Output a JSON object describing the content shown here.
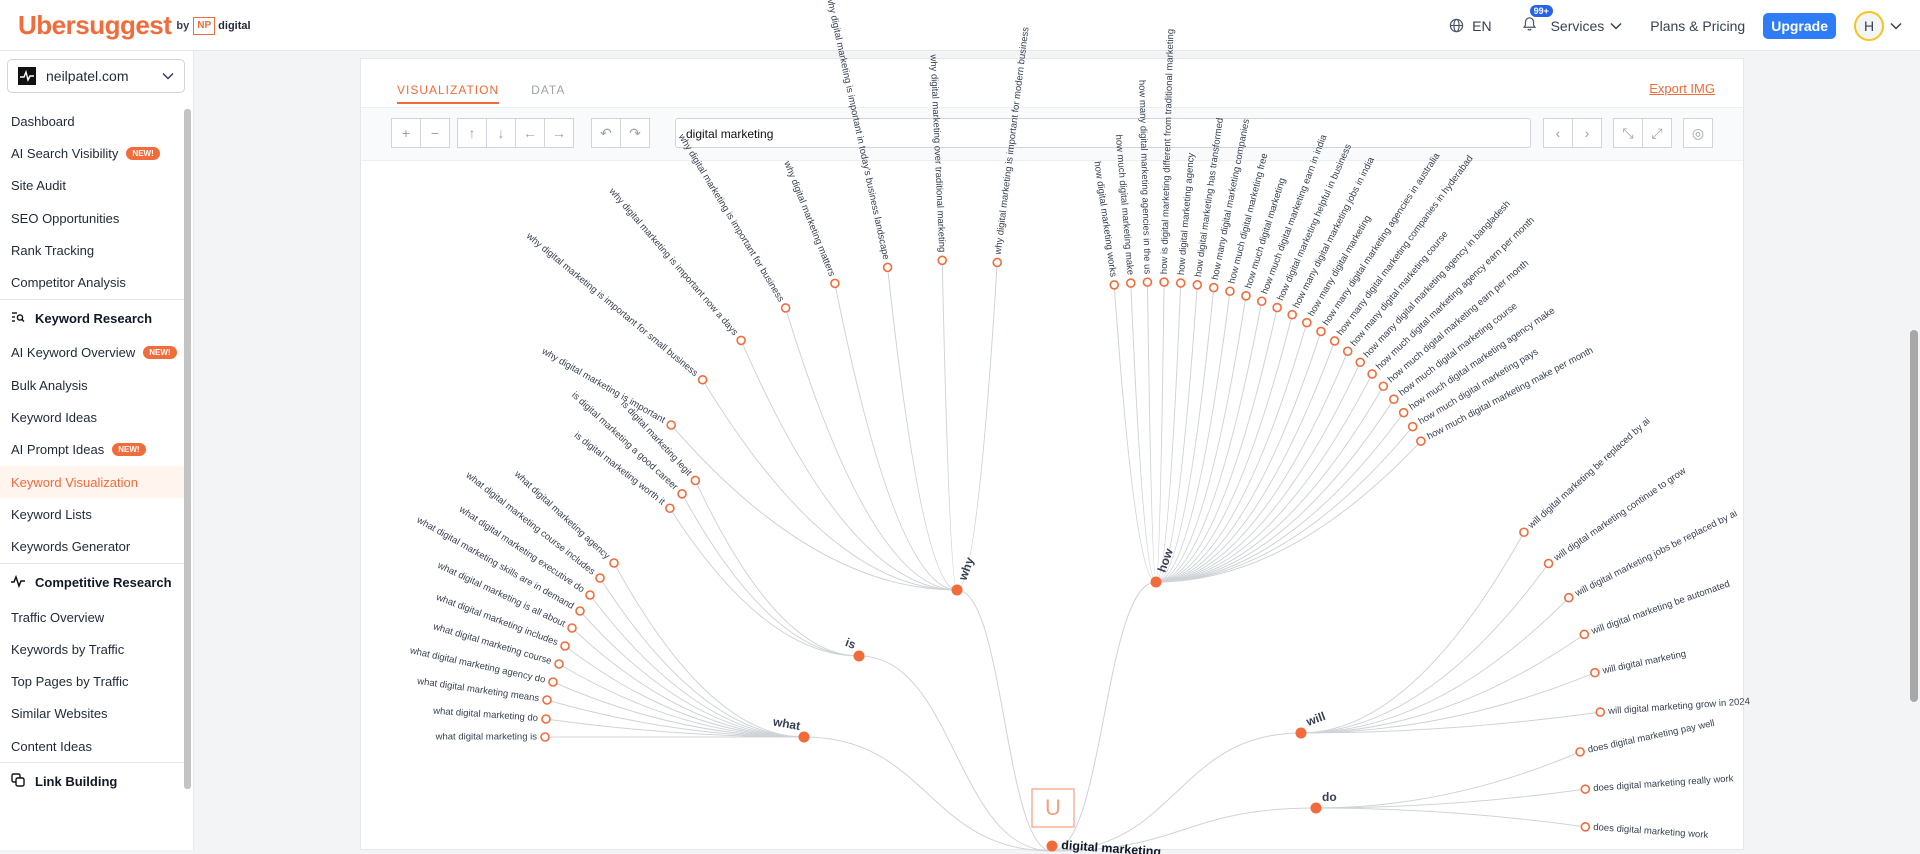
{
  "app": {
    "brand": "Ubersuggest",
    "by": "by",
    "np": "NP",
    "digital": "digital"
  },
  "header": {
    "lang": "EN",
    "notif_count": "99+",
    "services": "Services",
    "pricing": "Plans & Pricing",
    "upgrade": "Upgrade",
    "avatar_initial": "H"
  },
  "sidebar": {
    "domain": "neilpatel.com",
    "new_label": "NEW!",
    "items": [
      {
        "label": "Dashboard",
        "type": "item"
      },
      {
        "label": "AI Search Visibility",
        "type": "item",
        "new": true
      },
      {
        "label": "Site Audit",
        "type": "item"
      },
      {
        "label": "SEO Opportunities",
        "type": "item"
      },
      {
        "label": "Rank Tracking",
        "type": "item"
      },
      {
        "label": "Competitor Analysis",
        "type": "item"
      },
      {
        "label": "Keyword Research",
        "type": "section",
        "icon": "keyword-search-icon"
      },
      {
        "label": "AI Keyword Overview",
        "type": "item",
        "new": true
      },
      {
        "label": "Bulk Analysis",
        "type": "item"
      },
      {
        "label": "Keyword Ideas",
        "type": "item"
      },
      {
        "label": "AI Prompt Ideas",
        "type": "item",
        "new": true
      },
      {
        "label": "Keyword Visualization",
        "type": "item",
        "active": true
      },
      {
        "label": "Keyword Lists",
        "type": "item"
      },
      {
        "label": "Keywords Generator",
        "type": "item"
      },
      {
        "label": "Competitive Research",
        "type": "section",
        "icon": "pulse-icon"
      },
      {
        "label": "Traffic Overview",
        "type": "item"
      },
      {
        "label": "Keywords by Traffic",
        "type": "item"
      },
      {
        "label": "Top Pages by Traffic",
        "type": "item"
      },
      {
        "label": "Similar Websites",
        "type": "item"
      },
      {
        "label": "Content Ideas",
        "type": "item"
      },
      {
        "label": "Link Building",
        "type": "section",
        "icon": "link-copy-icon"
      }
    ]
  },
  "main": {
    "tabs": [
      "VISUALIZATION",
      "DATA"
    ],
    "export": "Export IMG",
    "search_value": "digital marketing"
  },
  "colors": {
    "accent": "#f26b3a",
    "node": "#f26b3a",
    "link": "#cfd3d8"
  },
  "tree": {
    "root": "digital marketing",
    "branches": [
      {
        "label": "why",
        "children": [
          "why digital marketing is important",
          "why digital marketing is important for small business",
          "why digital marketing is important now a days",
          "why digital marketing is important for business",
          "why digital marketing matters",
          "why digital marketing is important in today's business landscape",
          "why digital marketing over traditional marketing",
          "why digital marketing is important for modern business"
        ]
      },
      {
        "label": "how",
        "children": [
          "how digital marketing works",
          "how much digital marketing make",
          "how many digital marketing agencies in the us",
          "how is digital marketing different from traditional marketing",
          "how digital marketing agency",
          "how digital marketing has transformed",
          "how many digital marketing companies",
          "how much digital marketing free",
          "how much digital marketing",
          "how much digital marketing earn in india",
          "how digital marketing helpful in business",
          "how many digital marketing jobs in india",
          "how many digital marketing",
          "how many digital marketing agencies in australia",
          "how many digital marketing companies in hyderabad",
          "how many digital marketing course",
          "how many digital marketing agency in bangladesh",
          "how much digital marketing agency earn per month",
          "how much digital marketing earn per month",
          "how much digital marketing course",
          "how much digital marketing agency make",
          "how much digital marketing pays",
          "how much digital marketing make per month"
        ]
      },
      {
        "label": "is",
        "children": [
          "is digital marketing worth it",
          "is digital marketing a good career",
          "is digital marketing legit"
        ]
      },
      {
        "label": "what",
        "children": [
          "what digital marketing agency",
          "what digital marketing course includes",
          "what digital marketing executive do",
          "what digital marketing skills are in demand",
          "what digital marketing is all about",
          "what digital marketing includes",
          "what digital marketing course",
          "what digital marketing agency do",
          "what digital marketing means",
          "what digital marketing do",
          "what digital marketing is"
        ]
      },
      {
        "label": "will",
        "children": [
          "will digital marketing be replaced by ai",
          "will digital marketing continue to grow",
          "will digital marketing jobs be replaced by ai",
          "will digital marketing be automated",
          "will digital marketing",
          "will digital marketing grow in 2024"
        ]
      },
      {
        "label": "do",
        "children": [
          "does digital marketing pay well",
          "does digital marketing really work",
          "does digital marketing work"
        ]
      }
    ]
  }
}
